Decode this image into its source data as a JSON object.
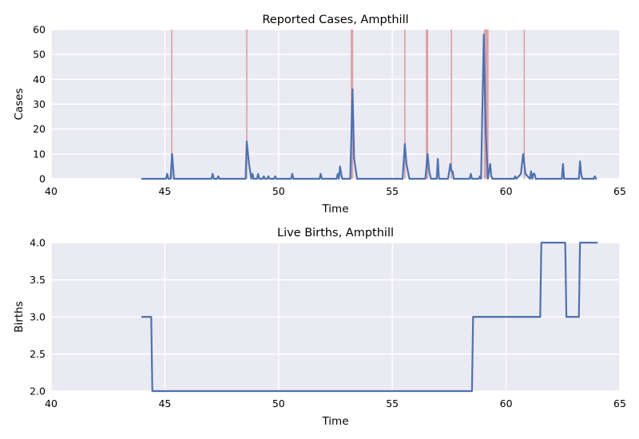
{
  "chart_data": [
    {
      "type": "line",
      "title": "Reported Cases, Ampthill",
      "xlabel": "Time",
      "ylabel": "Cases",
      "xlim": [
        40,
        65
      ],
      "ylim": [
        0,
        60
      ],
      "xticks": [
        40,
        45,
        50,
        55,
        60,
        65
      ],
      "yticks": [
        0,
        10,
        20,
        30,
        40,
        50,
        60
      ],
      "grid": true,
      "background": "#EAEAF2",
      "series": [
        {
          "color": "#4C72B0",
          "x": [
            44.0,
            45.05,
            45.1,
            45.15,
            45.25,
            45.32,
            45.4,
            47.05,
            47.1,
            47.15,
            47.3,
            47.35,
            47.4,
            48.55,
            48.6,
            48.7,
            48.8,
            48.85,
            48.9,
            48.95,
            49.05,
            49.1,
            49.15,
            49.3,
            49.35,
            49.4,
            49.5,
            49.55,
            49.6,
            49.8,
            49.85,
            49.9,
            50.55,
            50.6,
            50.65,
            51.8,
            51.85,
            51.9,
            52.55,
            52.6,
            52.65,
            52.7,
            52.75,
            52.8,
            53.15,
            53.25,
            53.32,
            53.45,
            55.45,
            55.55,
            55.62,
            55.75,
            56.45,
            56.55,
            56.62,
            56.7,
            56.95,
            57.0,
            57.05,
            57.45,
            57.55,
            57.6,
            57.65,
            57.7,
            58.4,
            58.45,
            58.5,
            58.8,
            58.85,
            58.9,
            59.02,
            59.1,
            59.2,
            59.3,
            59.35,
            59.4,
            60.35,
            60.4,
            60.45,
            60.65,
            60.75,
            60.85,
            61.05,
            61.1,
            61.15,
            61.2,
            61.25,
            61.3,
            62.45,
            62.5,
            62.55,
            63.2,
            63.25,
            63.3,
            63.35,
            63.85,
            63.9,
            63.95
          ],
          "values": [
            0,
            0,
            2,
            0,
            0,
            10,
            0,
            0,
            2,
            0,
            0,
            1,
            0,
            0,
            15,
            6,
            0,
            2,
            0,
            0,
            0,
            2,
            0,
            0,
            1,
            0,
            0,
            1,
            0,
            0,
            1,
            0,
            0,
            2,
            0,
            0,
            2,
            0,
            0,
            2,
            0,
            5,
            2,
            0,
            0,
            36,
            8,
            0,
            0,
            14,
            6,
            0,
            0,
            10,
            3,
            0,
            0,
            8,
            0,
            0,
            6,
            3,
            3,
            0,
            0,
            2,
            0,
            0,
            1,
            0,
            58,
            20,
            0,
            6,
            1,
            0,
            0,
            1,
            0,
            2,
            10,
            2,
            0,
            3,
            0,
            2,
            2,
            0,
            0,
            6,
            0,
            0,
            7,
            2,
            0,
            0,
            1,
            0
          ]
        }
      ],
      "vlines": {
        "color": "#D9A0A6",
        "x": [
          45.3,
          48.6,
          53.2,
          53.25,
          55.55,
          56.5,
          56.55,
          57.6,
          59.05,
          59.1,
          59.15,
          59.2,
          60.8
        ]
      }
    },
    {
      "type": "line",
      "title": "Live Births, Ampthill",
      "xlabel": "Time",
      "ylabel": "Births",
      "xlim": [
        40,
        65
      ],
      "ylim": [
        2.0,
        4.0
      ],
      "xticks": [
        40,
        45,
        50,
        55,
        60,
        65
      ],
      "yticks": [
        2.0,
        2.5,
        3.0,
        3.5,
        4.0
      ],
      "ytick_labels": [
        "2.0",
        "2.5",
        "3.0",
        "3.5",
        "4.0"
      ],
      "grid": true,
      "background": "#EAEAF2",
      "series": [
        {
          "color": "#4C72B0",
          "x": [
            44.0,
            44.4,
            44.45,
            58.5,
            58.55,
            61.5,
            61.55,
            62.6,
            62.65,
            63.2,
            63.25,
            64.0
          ],
          "values": [
            3,
            3,
            2,
            2,
            3,
            3,
            4,
            4,
            3,
            3,
            4,
            4
          ]
        }
      ]
    }
  ]
}
